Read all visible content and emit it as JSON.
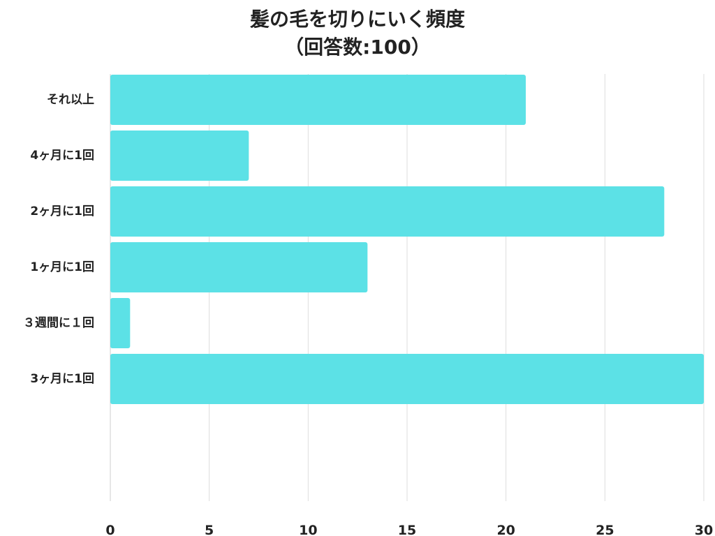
{
  "chart_data": {
    "type": "bar",
    "orientation": "horizontal",
    "title": "髪の毛を切りにいく頻度",
    "subtitle": "（回答数:100）",
    "categories": [
      "それ以上",
      "4ヶ月に1回",
      "2ヶ月に1回",
      "1ヶ月に1回",
      "３週間に１回",
      "3ヶ月に1回"
    ],
    "values": [
      21,
      7,
      28,
      13,
      1,
      30
    ],
    "xlim": [
      0,
      30
    ],
    "xticks": [
      0,
      5,
      10,
      15,
      20,
      25,
      30
    ],
    "xtick_labels": [
      "0",
      "5",
      "10",
      "15",
      "20",
      "25",
      "30"
    ],
    "grid": "vertical",
    "legend": "none",
    "bar_color": "#5ce1e6",
    "grid_color": "#dddddd",
    "text_color": "#222222"
  }
}
